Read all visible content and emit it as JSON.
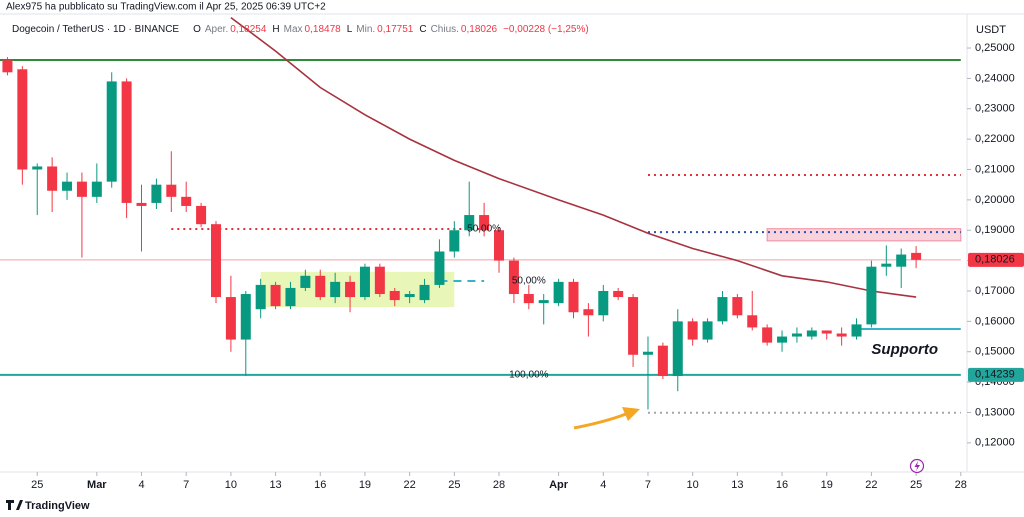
{
  "chart_data": {
    "type": "candlestick",
    "published": "Alex975 ha pubblicato su TradingView.com il Apr 25, 2025 06:39 UTC+2",
    "symbol": "Dogecoin / TetherUS · 1D · BINANCE",
    "ohlc_legend": [
      {
        "key": "O",
        "name": "Aper.",
        "value": "0,18254"
      },
      {
        "key": "H",
        "name": "Max",
        "value": "0,18478"
      },
      {
        "key": "L",
        "name": "Min.",
        "value": "0,17751"
      },
      {
        "key": "C",
        "name": "Chius.",
        "value": "0,18026"
      }
    ],
    "change": "−0,00228 (−1,25%)",
    "y_unit": "USDT",
    "brand": "TradingView",
    "up_color": "#089981",
    "down_color": "#f23645",
    "x": [
      "2025-02-23",
      "2025-02-24",
      "2025-02-25",
      "2025-02-26",
      "2025-02-27",
      "2025-02-28",
      "2025-03-01",
      "2025-03-02",
      "2025-03-03",
      "2025-03-04",
      "2025-03-05",
      "2025-03-06",
      "2025-03-07",
      "2025-03-08",
      "2025-03-09",
      "2025-03-10",
      "2025-03-11",
      "2025-03-12",
      "2025-03-13",
      "2025-03-14",
      "2025-03-15",
      "2025-03-16",
      "2025-03-17",
      "2025-03-18",
      "2025-03-19",
      "2025-03-20",
      "2025-03-21",
      "2025-03-22",
      "2025-03-23",
      "2025-03-24",
      "2025-03-25",
      "2025-03-26",
      "2025-03-27",
      "2025-03-28",
      "2025-03-29",
      "2025-03-30",
      "2025-03-31",
      "2025-04-01",
      "2025-04-02",
      "2025-04-03",
      "2025-04-04",
      "2025-04-05",
      "2025-04-06",
      "2025-04-07",
      "2025-04-08",
      "2025-04-09",
      "2025-04-10",
      "2025-04-11",
      "2025-04-12",
      "2025-04-13",
      "2025-04-14",
      "2025-04-15",
      "2025-04-16",
      "2025-04-17",
      "2025-04-18",
      "2025-04-19",
      "2025-04-20",
      "2025-04-21",
      "2025-04-22",
      "2025-04-23",
      "2025-04-24",
      "2025-04-25"
    ],
    "open": [
      0.246,
      0.243,
      0.21,
      0.211,
      0.203,
      0.206,
      0.201,
      0.206,
      0.239,
      0.199,
      0.199,
      0.205,
      0.201,
      0.198,
      0.192,
      0.168,
      0.154,
      0.164,
      0.172,
      0.165,
      0.171,
      0.175,
      0.168,
      0.173,
      0.168,
      0.178,
      0.17,
      0.168,
      0.167,
      0.172,
      0.183,
      0.19,
      0.195,
      0.19,
      0.18,
      0.169,
      0.166,
      0.166,
      0.173,
      0.164,
      0.162,
      0.17,
      0.168,
      0.149,
      0.152,
      0.142,
      0.16,
      0.154,
      0.16,
      0.168,
      0.162,
      0.158,
      0.153,
      0.155,
      0.155,
      0.157,
      0.156,
      0.155,
      0.159,
      0.178,
      0.178,
      0.18254
    ],
    "high": [
      0.247,
      0.244,
      0.212,
      0.214,
      0.209,
      0.209,
      0.212,
      0.242,
      0.24,
      0.205,
      0.207,
      0.216,
      0.206,
      0.199,
      0.193,
      0.175,
      0.17,
      0.174,
      0.173,
      0.173,
      0.177,
      0.177,
      0.176,
      0.175,
      0.179,
      0.179,
      0.171,
      0.17,
      0.174,
      0.187,
      0.193,
      0.206,
      0.199,
      0.191,
      0.181,
      0.172,
      0.169,
      0.174,
      0.174,
      0.166,
      0.172,
      0.171,
      0.169,
      0.155,
      0.153,
      0.164,
      0.161,
      0.161,
      0.17,
      0.169,
      0.17,
      0.159,
      0.157,
      0.158,
      0.158,
      0.157,
      0.158,
      0.161,
      0.18,
      0.185,
      0.184,
      0.18478
    ],
    "low": [
      0.241,
      0.205,
      0.195,
      0.196,
      0.2,
      0.181,
      0.199,
      0.204,
      0.194,
      0.183,
      0.197,
      0.196,
      0.196,
      0.191,
      0.166,
      0.15,
      0.142,
      0.161,
      0.164,
      0.164,
      0.17,
      0.167,
      0.166,
      0.163,
      0.167,
      0.168,
      0.165,
      0.166,
      0.166,
      0.171,
      0.181,
      0.188,
      0.188,
      0.176,
      0.166,
      0.164,
      0.159,
      0.165,
      0.161,
      0.155,
      0.16,
      0.167,
      0.145,
      0.131,
      0.141,
      0.137,
      0.152,
      0.153,
      0.159,
      0.161,
      0.157,
      0.152,
      0.15,
      0.153,
      0.154,
      0.154,
      0.152,
      0.154,
      0.158,
      0.175,
      0.171,
      0.17751
    ],
    "close": [
      0.242,
      0.21,
      0.211,
      0.203,
      0.206,
      0.201,
      0.206,
      0.239,
      0.199,
      0.198,
      0.205,
      0.201,
      0.198,
      0.192,
      0.168,
      0.154,
      0.169,
      0.172,
      0.165,
      0.171,
      0.175,
      0.168,
      0.173,
      0.168,
      0.178,
      0.169,
      0.167,
      0.169,
      0.172,
      0.183,
      0.19,
      0.195,
      0.19,
      0.18,
      0.169,
      0.166,
      0.167,
      0.173,
      0.163,
      0.162,
      0.17,
      0.168,
      0.149,
      0.15,
      0.142,
      0.16,
      0.154,
      0.16,
      0.168,
      0.162,
      0.158,
      0.153,
      0.155,
      0.156,
      0.157,
      0.156,
      0.155,
      0.159,
      0.178,
      0.179,
      0.182,
      0.18026
    ],
    "moving_average": {
      "color": "#a8323e",
      "x": [
        "2025-03-10",
        "2025-03-13",
        "2025-03-14",
        "2025-03-16",
        "2025-03-19",
        "2025-03-22",
        "2025-03-25",
        "2025-03-28",
        "2025-04-01",
        "2025-04-04",
        "2025-04-07",
        "2025-04-10",
        "2025-04-13",
        "2025-04-16",
        "2025-04-19",
        "2025-04-22",
        "2025-04-25"
      ],
      "values": [
        0.26,
        0.249,
        0.245,
        0.237,
        0.228,
        0.22,
        0.213,
        0.207,
        0.2,
        0.195,
        0.189,
        0.184,
        0.18,
        0.175,
        0.173,
        0.17,
        0.168
      ]
    },
    "levels": [
      {
        "value": 0.24605,
        "color": "#2e8b3a",
        "style": "solid",
        "from": "2025-02-22",
        "to": "2025-04-28"
      },
      {
        "value": 0.14239,
        "color": "#22a59a",
        "style": "solid",
        "from": "2025-02-22",
        "to": "2025-04-28"
      },
      {
        "value": 0.2082,
        "color": "#e0303a",
        "style": "dotted",
        "from": "2025-04-07",
        "to": "2025-04-28"
      },
      {
        "value": 0.1904,
        "color": "#e0303a",
        "style": "dotted",
        "from": "2025-03-06",
        "to": "2025-03-27"
      },
      {
        "value": 0.1894,
        "color": "#2a4fa8",
        "style": "dotted",
        "from": "2025-04-07",
        "to": "2025-04-28"
      },
      {
        "value": 0.1733,
        "color": "#36b3c9",
        "style": "dashed",
        "from": "2025-03-24",
        "to": "2025-03-27"
      },
      {
        "value": 0.1575,
        "color": "#36b3c9",
        "style": "solid",
        "from": "2025-04-21",
        "to": "2025-04-28"
      },
      {
        "value": 0.1299,
        "color": "#a0a4ad",
        "style": "dotted",
        "from": "2025-04-07",
        "to": "2025-04-28"
      },
      {
        "value": 0.18026,
        "color": "#f2a0a6",
        "style": "thin",
        "from": "2025-02-22",
        "to": "2025-04-28"
      }
    ],
    "boxes": [
      {
        "from": "2025-03-12",
        "to": "2025-03-25",
        "top": 0.1763,
        "bottom": 0.1647,
        "color": "#e8f7b8"
      },
      {
        "from": "2025-04-15",
        "to": "2025-04-28",
        "top": 0.1905,
        "bottom": 0.1865,
        "color": "#f9d3dc"
      }
    ],
    "annotations": [
      {
        "text": "50,00%",
        "x": "2025-03-27",
        "y": 0.1904,
        "color": "#e0303a"
      },
      {
        "text": "50,00%",
        "x": "2025-03-30",
        "y": 0.1733,
        "color": "#36b3c9"
      },
      {
        "text": "100,00%",
        "x": "2025-03-30",
        "y": 0.1424,
        "color": "#c3c6cc"
      },
      {
        "text": "Supporto",
        "x": "2025-04-22",
        "y": 0.1505,
        "color": "#2fb3c9"
      }
    ],
    "price_tags": [
      {
        "value": 0.18026,
        "label": "0,18026",
        "color": "#f23645"
      },
      {
        "value": 0.14239,
        "label": "0,14239",
        "color": "#22a59a"
      }
    ],
    "xlim": [
      "2025-02-22T12:00:00Z",
      "2025-04-28T10:00:00Z"
    ],
    "xticks": [
      {
        "value": "2025-02-25",
        "label": "25"
      },
      {
        "value": "2025-03-01",
        "label": "Mar"
      },
      {
        "value": "2025-03-04",
        "label": "4"
      },
      {
        "value": "2025-03-07",
        "label": "7"
      },
      {
        "value": "2025-03-10",
        "label": "10"
      },
      {
        "value": "2025-03-13",
        "label": "13"
      },
      {
        "value": "2025-03-16",
        "label": "16"
      },
      {
        "value": "2025-03-19",
        "label": "19"
      },
      {
        "value": "2025-03-22",
        "label": "22"
      },
      {
        "value": "2025-03-25",
        "label": "25"
      },
      {
        "value": "2025-03-28",
        "label": "28"
      },
      {
        "value": "2025-04-01",
        "label": "Apr"
      },
      {
        "value": "2025-04-04",
        "label": "4"
      },
      {
        "value": "2025-04-07",
        "label": "7"
      },
      {
        "value": "2025-04-10",
        "label": "10"
      },
      {
        "value": "2025-04-13",
        "label": "13"
      },
      {
        "value": "2025-04-16",
        "label": "16"
      },
      {
        "value": "2025-04-19",
        "label": "19"
      },
      {
        "value": "2025-04-22",
        "label": "22"
      },
      {
        "value": "2025-04-25",
        "label": "25"
      },
      {
        "value": "2025-04-28",
        "label": "28"
      }
    ],
    "ylim": [
      0.1104,
      0.2612
    ],
    "yticks": [
      {
        "value": 0.12,
        "label": "0,12000"
      },
      {
        "value": 0.13,
        "label": "0,13000"
      },
      {
        "value": 0.14,
        "label": "0,14000"
      },
      {
        "value": 0.15,
        "label": "0,15000"
      },
      {
        "value": 0.16,
        "label": "0,16000"
      },
      {
        "value": 0.17,
        "label": "0,17000"
      },
      {
        "value": 0.18,
        "label": "0,18000"
      },
      {
        "value": 0.19,
        "label": "0,19000"
      },
      {
        "value": 0.2,
        "label": "0,20000"
      },
      {
        "value": 0.21,
        "label": "0,21000"
      },
      {
        "value": 0.22,
        "label": "0,22000"
      },
      {
        "value": 0.23,
        "label": "0,23000"
      },
      {
        "value": 0.24,
        "label": "0,24000"
      },
      {
        "value": 0.25,
        "label": "0,25000"
      }
    ],
    "grid": false
  }
}
